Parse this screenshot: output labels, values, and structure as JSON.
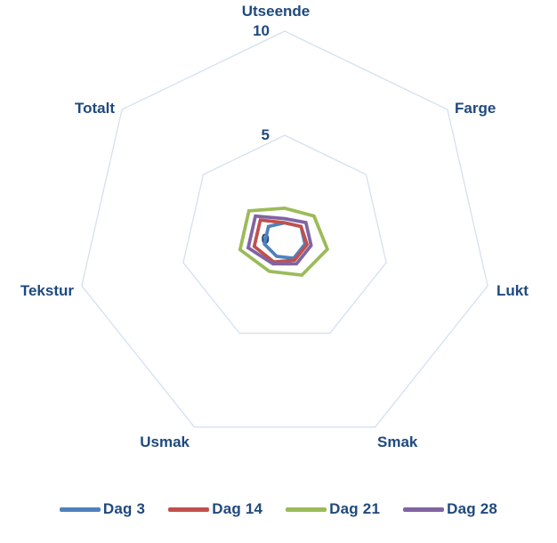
{
  "chart_data": {
    "type": "radar",
    "title": "",
    "categories": [
      "Utseende",
      "Farge",
      "Lukt",
      "Smak",
      "Usmak",
      "Tekstur",
      "Totalt"
    ],
    "series": [
      {
        "name": "Dag 3",
        "color": "#4F81BD",
        "values": [
          0.8,
          1.0,
          1.0,
          1.0,
          0.9,
          1.0,
          1.0
        ]
      },
      {
        "name": "Dag 14",
        "color": "#C0504D",
        "values": [
          0.8,
          1.0,
          1.1,
          1.1,
          1.2,
          1.5,
          1.5
        ]
      },
      {
        "name": "Dag 21",
        "color": "#9BBB59",
        "values": [
          1.5,
          1.8,
          2.1,
          1.9,
          1.7,
          2.2,
          2.2
        ]
      },
      {
        "name": "Dag 28",
        "color": "#8064A2",
        "values": [
          1.0,
          1.3,
          1.3,
          1.3,
          1.3,
          1.8,
          1.8
        ]
      }
    ],
    "axis": {
      "min": 0,
      "max": 10,
      "ticks": [
        0,
        5,
        10
      ]
    },
    "grid_on": true,
    "grid_color": "#D5E0F0",
    "text_color": "#1F497D",
    "legend_position": "bottom"
  }
}
